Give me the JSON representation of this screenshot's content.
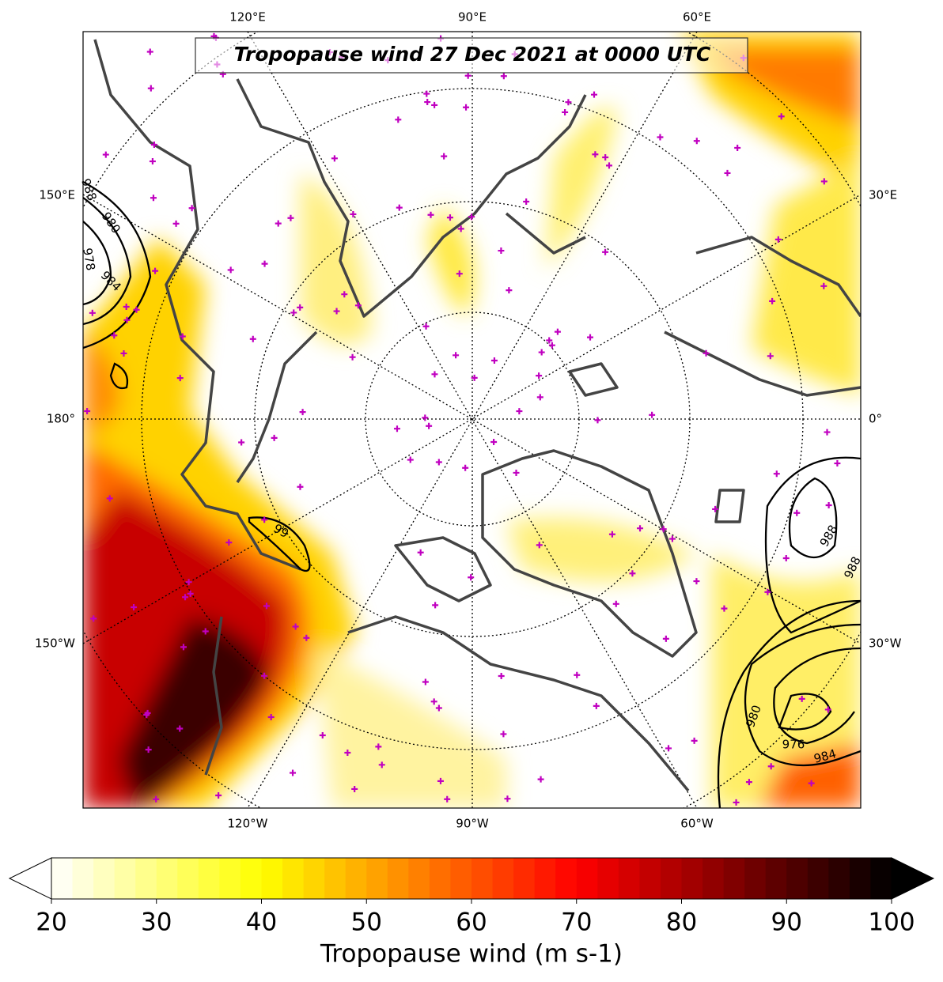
{
  "title": "Tropopause wind 27 Dec 2021 at 0000 UTC",
  "longitude_labels": {
    "top": [
      "120°E",
      "90°E",
      "60°E"
    ],
    "left": [
      "150°E",
      "180°",
      "150°W"
    ],
    "right": [
      "30°E",
      "0°",
      "30°W"
    ],
    "bottom": [
      "120°W",
      "90°W",
      "60°W"
    ]
  },
  "contour_labels": [
    "988",
    "980",
    "984",
    "978",
    "99",
    "988",
    "988",
    "980",
    "976",
    "984"
  ],
  "colorbar": {
    "label": "Tropopause wind (m s-1)",
    "range": [
      20,
      100
    ],
    "ticks": [
      20,
      30,
      40,
      50,
      60,
      70,
      80,
      90,
      100
    ],
    "extend": "both"
  }
}
